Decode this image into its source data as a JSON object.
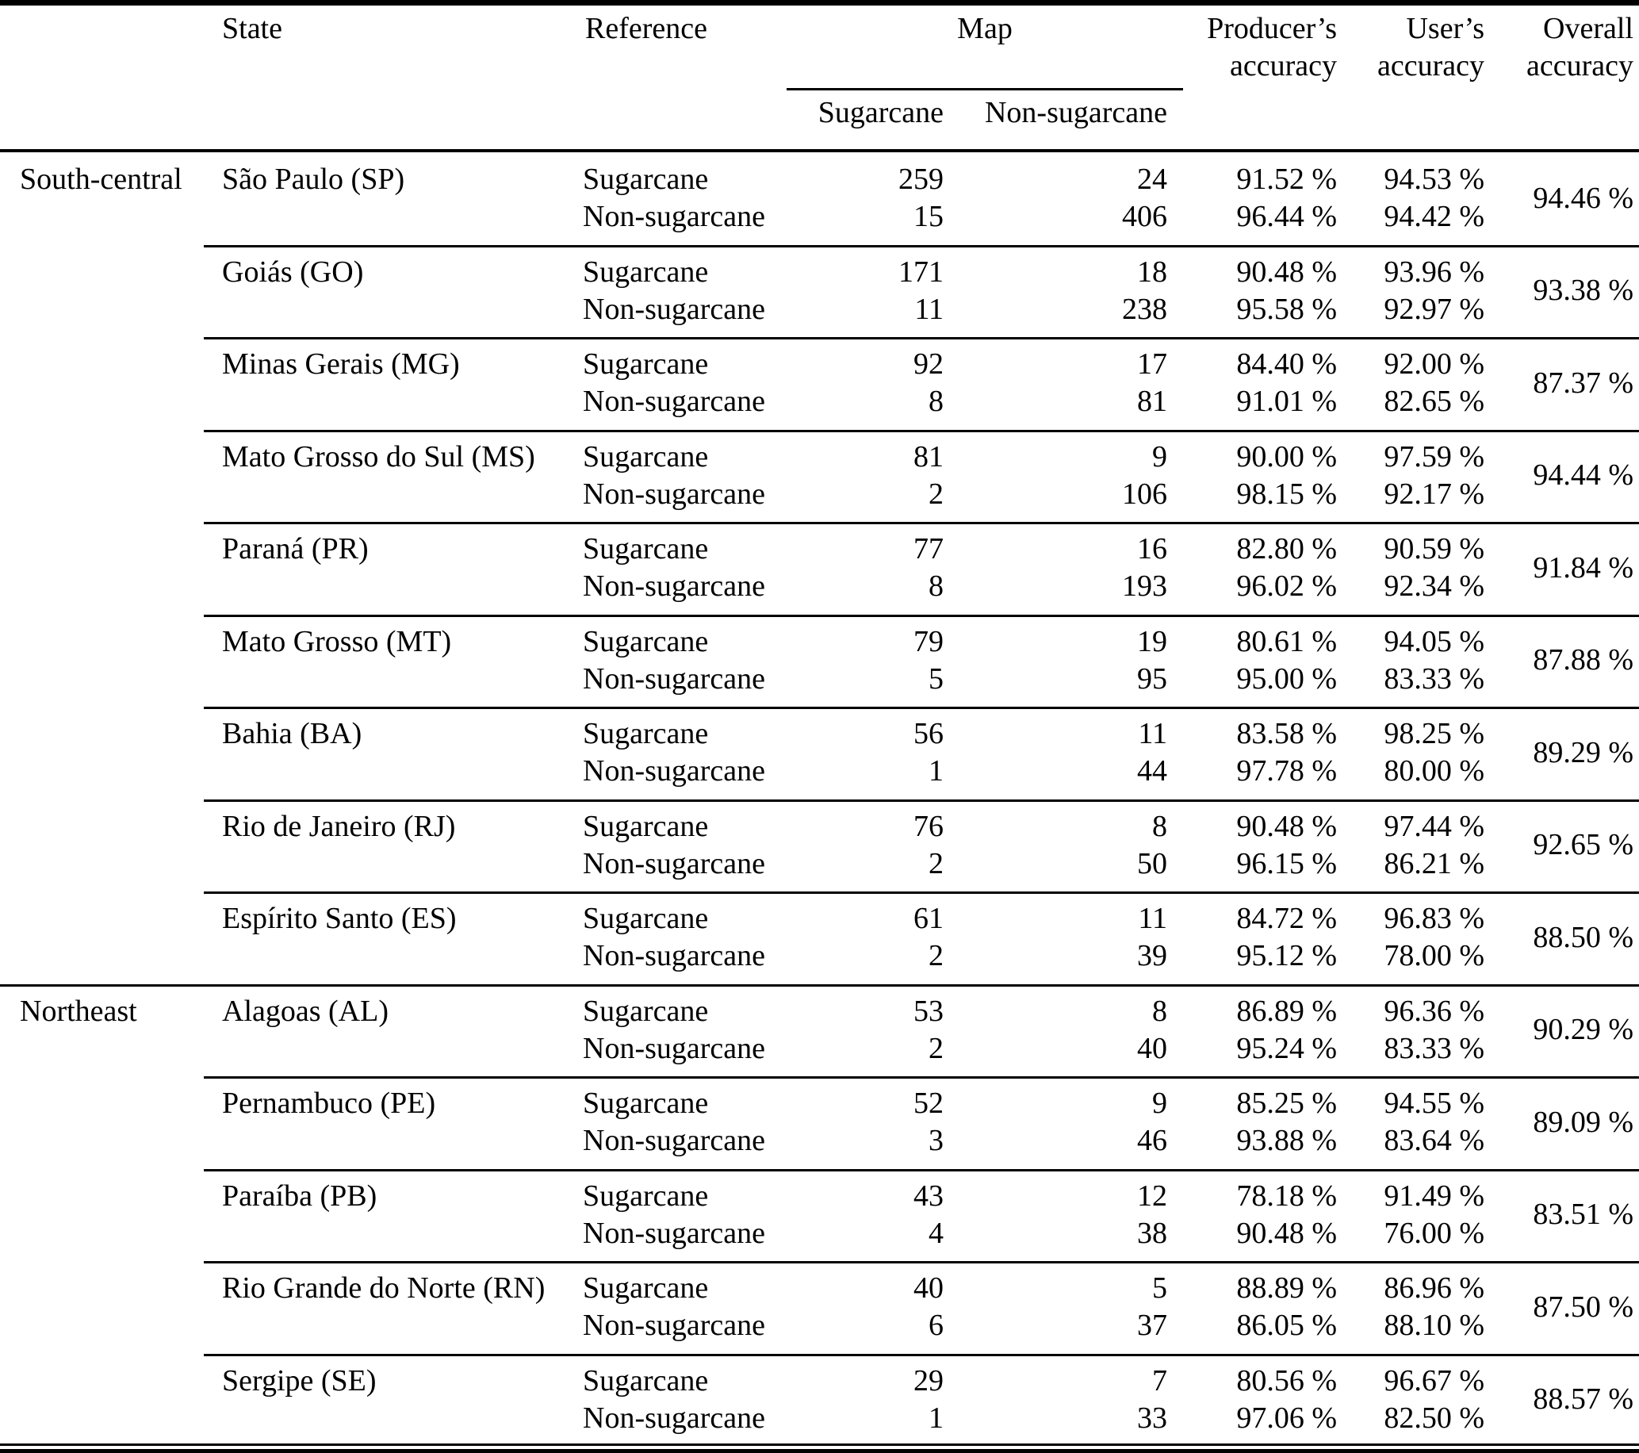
{
  "table": {
    "headers": {
      "state": "State",
      "reference": "Reference",
      "map": "Map",
      "map_sub_sugarcane": "Sugarcane",
      "map_sub_nonsugarcane": "Non-sugarcane",
      "producers_line1": "Producer’s",
      "producers_line2": "accuracy",
      "users_line1": "User’s",
      "users_line2": "accuracy",
      "overall_line1": "Overall",
      "overall_line2": "accuracy"
    },
    "regions": [
      {
        "region": "South-central",
        "states": [
          {
            "state": "São Paulo (SP)",
            "rows": [
              {
                "ref": "Sugarcane",
                "sug": "259",
                "nonsug": "24",
                "producers": "91.52 %",
                "users": "94.53 %"
              },
              {
                "ref": "Non-sugarcane",
                "sug": "15",
                "nonsug": "406",
                "producers": "96.44 %",
                "users": "94.42 %"
              }
            ],
            "overall": "94.46 %"
          },
          {
            "state": "Goiás (GO)",
            "rows": [
              {
                "ref": "Sugarcane",
                "sug": "171",
                "nonsug": "18",
                "producers": "90.48 %",
                "users": "93.96 %"
              },
              {
                "ref": "Non-sugarcane",
                "sug": "11",
                "nonsug": "238",
                "producers": "95.58 %",
                "users": "92.97 %"
              }
            ],
            "overall": "93.38 %"
          },
          {
            "state": "Minas Gerais (MG)",
            "rows": [
              {
                "ref": "Sugarcane",
                "sug": "92",
                "nonsug": "17",
                "producers": "84.40 %",
                "users": "92.00 %"
              },
              {
                "ref": "Non-sugarcane",
                "sug": "8",
                "nonsug": "81",
                "producers": "91.01 %",
                "users": "82.65 %"
              }
            ],
            "overall": "87.37 %"
          },
          {
            "state": "Mato Grosso do Sul (MS)",
            "rows": [
              {
                "ref": "Sugarcane",
                "sug": "81",
                "nonsug": "9",
                "producers": "90.00 %",
                "users": "97.59 %"
              },
              {
                "ref": "Non-sugarcane",
                "sug": "2",
                "nonsug": "106",
                "producers": "98.15 %",
                "users": "92.17 %"
              }
            ],
            "overall": "94.44 %"
          },
          {
            "state": "Paraná (PR)",
            "rows": [
              {
                "ref": "Sugarcane",
                "sug": "77",
                "nonsug": "16",
                "producers": "82.80 %",
                "users": "90.59 %"
              },
              {
                "ref": "Non-sugarcane",
                "sug": "8",
                "nonsug": "193",
                "producers": "96.02 %",
                "users": "92.34 %"
              }
            ],
            "overall": "91.84 %"
          },
          {
            "state": "Mato Grosso (MT)",
            "rows": [
              {
                "ref": "Sugarcane",
                "sug": "79",
                "nonsug": "19",
                "producers": "80.61 %",
                "users": "94.05 %"
              },
              {
                "ref": "Non-sugarcane",
                "sug": "5",
                "nonsug": "95",
                "producers": "95.00 %",
                "users": "83.33 %"
              }
            ],
            "overall": "87.88 %"
          },
          {
            "state": "Bahia (BA)",
            "rows": [
              {
                "ref": "Sugarcane",
                "sug": "56",
                "nonsug": "11",
                "producers": "83.58 %",
                "users": "98.25 %"
              },
              {
                "ref": "Non-sugarcane",
                "sug": "1",
                "nonsug": "44",
                "producers": "97.78 %",
                "users": "80.00 %"
              }
            ],
            "overall": "89.29 %"
          },
          {
            "state": "Rio de Janeiro (RJ)",
            "rows": [
              {
                "ref": "Sugarcane",
                "sug": "76",
                "nonsug": "8",
                "producers": "90.48 %",
                "users": "97.44 %"
              },
              {
                "ref": "Non-sugarcane",
                "sug": "2",
                "nonsug": "50",
                "producers": "96.15 %",
                "users": "86.21 %"
              }
            ],
            "overall": "92.65 %"
          },
          {
            "state": "Espírito Santo (ES)",
            "rows": [
              {
                "ref": "Sugarcane",
                "sug": "61",
                "nonsug": "11",
                "producers": "84.72 %",
                "users": "96.83 %"
              },
              {
                "ref": "Non-sugarcane",
                "sug": "2",
                "nonsug": "39",
                "producers": "95.12 %",
                "users": "78.00 %"
              }
            ],
            "overall": "88.50 %"
          }
        ]
      },
      {
        "region": "Northeast",
        "states": [
          {
            "state": "Alagoas (AL)",
            "rows": [
              {
                "ref": "Sugarcane",
                "sug": "53",
                "nonsug": "8",
                "producers": "86.89 %",
                "users": "96.36 %"
              },
              {
                "ref": "Non-sugarcane",
                "sug": "2",
                "nonsug": "40",
                "producers": "95.24 %",
                "users": "83.33 %"
              }
            ],
            "overall": "90.29 %"
          },
          {
            "state": "Pernambuco (PE)",
            "rows": [
              {
                "ref": "Sugarcane",
                "sug": "52",
                "nonsug": "9",
                "producers": "85.25 %",
                "users": "94.55 %"
              },
              {
                "ref": "Non-sugarcane",
                "sug": "3",
                "nonsug": "46",
                "producers": "93.88 %",
                "users": "83.64 %"
              }
            ],
            "overall": "89.09 %"
          },
          {
            "state": "Paraíba (PB)",
            "rows": [
              {
                "ref": "Sugarcane",
                "sug": "43",
                "nonsug": "12",
                "producers": "78.18 %",
                "users": "91.49 %"
              },
              {
                "ref": "Non-sugarcane",
                "sug": "4",
                "nonsug": "38",
                "producers": "90.48 %",
                "users": "76.00 %"
              }
            ],
            "overall": "83.51 %"
          },
          {
            "state": "Rio Grande do Norte (RN)",
            "rows": [
              {
                "ref": "Sugarcane",
                "sug": "40",
                "nonsug": "5",
                "producers": "88.89 %",
                "users": "86.96 %"
              },
              {
                "ref": "Non-sugarcane",
                "sug": "6",
                "nonsug": "37",
                "producers": "86.05 %",
                "users": "88.10 %"
              }
            ],
            "overall": "87.50 %"
          },
          {
            "state": "Sergipe (SE)",
            "rows": [
              {
                "ref": "Sugarcane",
                "sug": "29",
                "nonsug": "7",
                "producers": "80.56 %",
                "users": "96.67 %"
              },
              {
                "ref": "Non-sugarcane",
                "sug": "1",
                "nonsug": "33",
                "producers": "97.06 %",
                "users": "82.50 %"
              }
            ],
            "overall": "88.57 %"
          }
        ]
      }
    ]
  }
}
